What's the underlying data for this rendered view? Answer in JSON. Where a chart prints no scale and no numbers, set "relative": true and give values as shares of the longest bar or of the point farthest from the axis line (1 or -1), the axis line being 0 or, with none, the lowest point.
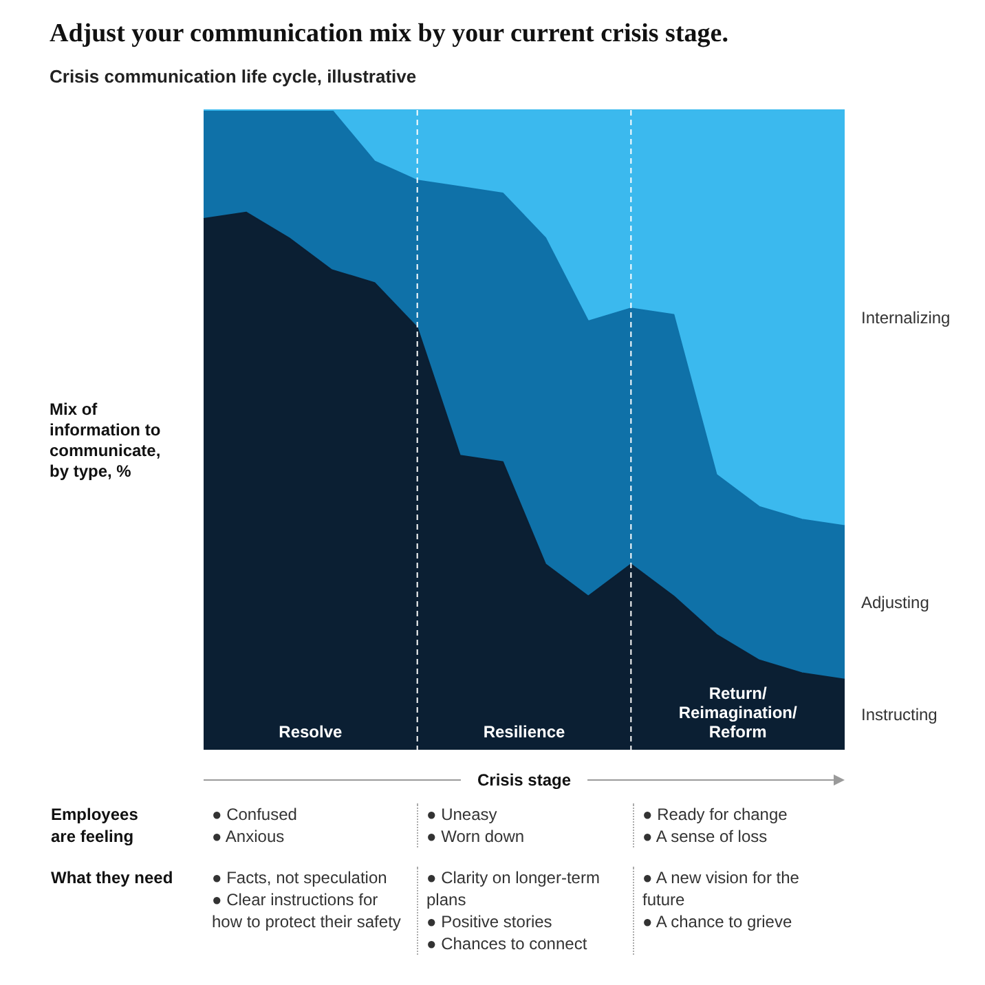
{
  "chart_data": {
    "type": "area",
    "title": "Adjust your communication mix by your current crisis stage.",
    "subtitle": "Crisis communication life cycle, illustrative",
    "xlabel": "Crisis stage",
    "ylabel": "Mix of\ninformation to\ncommunicate,\nby type, %",
    "relative": true,
    "stacked": true,
    "legend": false,
    "grid": false,
    "marker": "none",
    "tick_labels": false,
    "categories": [
      null,
      null,
      null,
      null,
      null,
      null,
      null,
      null,
      null,
      null,
      null,
      null,
      null,
      null,
      null,
      null
    ],
    "series": [
      {
        "name": "Instructing",
        "color": "#0b1f33",
        "values": [
          0.83,
          0.84,
          0.8,
          0.75,
          0.73,
          0.66,
          0.46,
          0.45,
          0.29,
          0.24,
          0.29,
          0.24,
          0.18,
          0.14,
          0.12,
          0.11
        ]
      },
      {
        "name": "Adjusting",
        "color": "#0f71a8",
        "values": [
          0.17,
          0.16,
          0.2,
          0.25,
          0.19,
          0.23,
          0.42,
          0.42,
          0.51,
          0.43,
          0.4,
          0.44,
          0.25,
          0.24,
          0.24,
          0.24
        ]
      },
      {
        "name": "Internalizing",
        "color": "#3bb9ee",
        "values": [
          0,
          0,
          0,
          0,
          0.08,
          0.11,
          0.12,
          0.13,
          0.2,
          0.33,
          0.31,
          0.32,
          0.57,
          0.62,
          0.64,
          0.65
        ]
      }
    ],
    "annotations": [
      "Resolve",
      "Resilience",
      "Return/\nReimagination/\nReform",
      "Employees\nare feeling",
      "● Confused\n● Anxious",
      "● Uneasy\n● Worn down",
      "● Ready for change\n● A sense of loss",
      "What they need",
      "● Facts, not speculation\n● Clear instructions for how to protect their safety",
      "● Clarity on longer-term plans\n● Positive stories\n● Chances to connect",
      "● A new vision for the future\n● A chance to grieve"
    ]
  }
}
